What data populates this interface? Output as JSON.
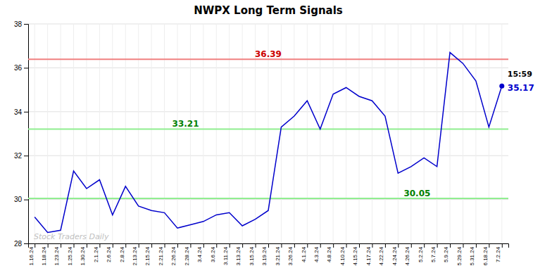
{
  "chart_data": {
    "type": "line",
    "title": "NWPX Long Term Signals",
    "categories": [
      "1.16.24",
      "1.18.24",
      "1.23.24",
      "1.25.24",
      "1.30.24",
      "2.1.24",
      "2.6.24",
      "2.8.24",
      "2.13.24",
      "2.15.24",
      "2.21.24",
      "2.26.24",
      "2.28.24",
      "3.4.24",
      "3.6.24",
      "3.11.24",
      "3.13.24",
      "3.15.24",
      "3.19.24",
      "3.21.24",
      "3.26.24",
      "4.1.24",
      "4.3.24",
      "4.8.24",
      "4.10.24",
      "4.15.24",
      "4.17.24",
      "4.22.24",
      "4.24.24",
      "4.26.24",
      "5.2.24",
      "5.7.24",
      "5.9.24",
      "5.29.24",
      "5.31.24",
      "6.18.24",
      "7.2.24"
    ],
    "values": [
      29.2,
      28.5,
      28.6,
      31.3,
      30.5,
      30.9,
      29.3,
      30.6,
      29.7,
      29.5,
      29.4,
      28.7,
      28.85,
      29.0,
      29.3,
      29.4,
      28.8,
      29.1,
      29.5,
      33.3,
      33.8,
      34.5,
      33.21,
      34.8,
      35.1,
      34.7,
      34.5,
      33.8,
      31.2,
      31.5,
      31.9,
      31.5,
      36.7,
      36.2,
      35.4,
      33.3,
      35.17
    ],
    "color": "#0000cc",
    "ylim": [
      28,
      38
    ],
    "yticks": [
      28,
      30,
      32,
      34,
      36,
      38
    ],
    "grid": true,
    "hlines": [
      {
        "value": 36.39,
        "label": "36.39",
        "color": "#f08080",
        "label_color": "#cc0000"
      },
      {
        "value": 33.21,
        "label": "33.21",
        "color": "#90ee90",
        "label_color": "#008000"
      },
      {
        "value": 30.05,
        "label": "30.05",
        "color": "#90ee90",
        "label_color": "#008000"
      }
    ],
    "last_point": {
      "time_label": "15:59",
      "price_label": "35.17"
    },
    "watermark": "Stock Traders Daily"
  }
}
